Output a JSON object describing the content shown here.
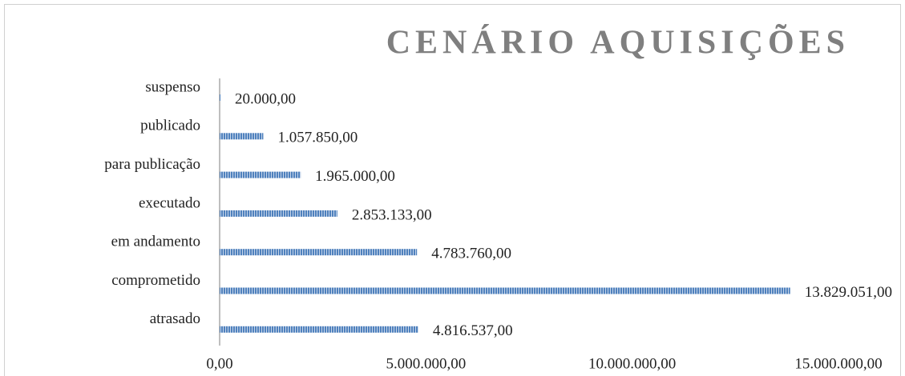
{
  "chart_data": {
    "type": "bar",
    "orientation": "horizontal",
    "title": "CENÁRIO AQUISIÇÕES",
    "categories": [
      "suspenso",
      "publicado",
      "para publicação",
      "executado",
      "em andamento",
      "comprometido",
      "atrasado"
    ],
    "values": [
      20000,
      1057850,
      1965000,
      2853133,
      4783760,
      13829051,
      4816537
    ],
    "value_labels": [
      "20.000,00",
      "1.057.850,00",
      "1.965.000,00",
      "2.853.133,00",
      "4.783.760,00",
      "13.829.051,00",
      "4.816.537,00"
    ],
    "color": "#4f81bd",
    "xlim": [
      0,
      15000000
    ],
    "xticks": [
      {
        "value": 0,
        "label": "0,00"
      },
      {
        "value": 5000000,
        "label": "5.000.000,00"
      },
      {
        "value": 10000000,
        "label": "10.000.000,00"
      },
      {
        "value": 15000000,
        "label": "15.000.000,00"
      }
    ]
  }
}
